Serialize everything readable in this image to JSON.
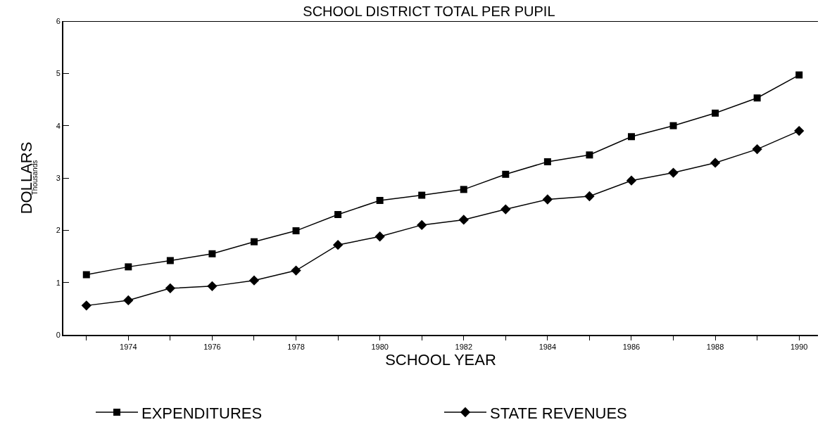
{
  "chart_data": {
    "type": "line",
    "title": "SCHOOL DISTRICT TOTAL PER PUPIL",
    "xlabel": "SCHOOL YEAR",
    "ylabel": "DOLLARS",
    "annotations": [
      "Thousands"
    ],
    "x": [
      1973,
      1974,
      1975,
      1976,
      1977,
      1978,
      1979,
      1980,
      1981,
      1982,
      1983,
      1984,
      1985,
      1986,
      1987,
      1988,
      1989,
      1990
    ],
    "series": [
      {
        "name": "EXPENDITURES",
        "color": "#000000",
        "marker": "square",
        "values": [
          1.15,
          1.3,
          1.42,
          1.55,
          1.78,
          1.99,
          2.3,
          2.57,
          2.67,
          2.78,
          3.07,
          3.31,
          3.44,
          3.79,
          4.0,
          4.24,
          4.53,
          4.97
        ]
      },
      {
        "name": "STATE REVENUES",
        "color": "#000000",
        "marker": "diamond",
        "values": [
          0.56,
          0.66,
          0.89,
          0.93,
          1.04,
          1.23,
          1.72,
          1.88,
          2.1,
          2.2,
          2.4,
          2.59,
          2.65,
          2.95,
          3.1,
          3.29,
          3.55,
          3.9
        ]
      }
    ],
    "xlim": [
      1972.45,
      1990.45
    ],
    "xticks": [
      {
        "value": 1973,
        "label": null
      },
      1974,
      {
        "value": 1975,
        "label": null
      },
      1976,
      {
        "value": 1977,
        "label": null
      },
      1978,
      {
        "value": 1979,
        "label": null
      },
      1980,
      {
        "value": 1981,
        "label": null
      },
      1982,
      {
        "value": 1983,
        "label": null
      },
      1984,
      {
        "value": 1985,
        "label": null
      },
      1986,
      {
        "value": 1987,
        "label": null
      },
      1988,
      {
        "value": 1989,
        "label": null
      },
      1990
    ],
    "ylim": [
      0,
      6
    ],
    "yticks": [
      0,
      1,
      2,
      3,
      4,
      5,
      6
    ],
    "grid": false,
    "legend": "bottom",
    "line_style": "solid"
  }
}
